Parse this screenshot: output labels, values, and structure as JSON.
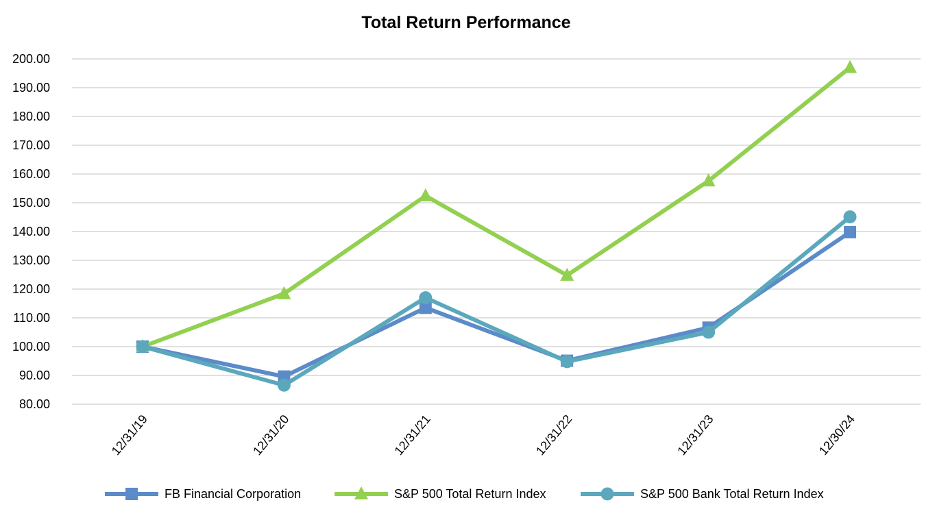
{
  "chart_data": {
    "type": "line",
    "title": "Total Return Performance",
    "xlabel": "",
    "ylabel": "",
    "categories": [
      "12/31/19",
      "12/31/20",
      "12/31/21",
      "12/31/22",
      "12/31/23",
      "12/30/24"
    ],
    "ylim": [
      80,
      200
    ],
    "yticks": [
      "80.00",
      "90.00",
      "100.00",
      "110.00",
      "120.00",
      "130.00",
      "140.00",
      "150.00",
      "160.00",
      "170.00",
      "180.00",
      "190.00",
      "200.00"
    ],
    "grid": true,
    "legend_position": "bottom",
    "series": [
      {
        "name": "FB Financial Corporation",
        "values": [
          100.0,
          89.6,
          113.5,
          95.1,
          106.6,
          139.8
        ],
        "color": "#5b8bc9",
        "marker": "square"
      },
      {
        "name": "S&P 500 Total Return Index",
        "values": [
          100.0,
          118.4,
          152.4,
          124.8,
          157.6,
          197.0
        ],
        "color": "#92d050",
        "marker": "triangle"
      },
      {
        "name": "S&P 500 Bank Total Return Index",
        "values": [
          100.0,
          86.6,
          117.0,
          94.8,
          105.0,
          145.1
        ],
        "color": "#5ba8bd",
        "marker": "circle"
      }
    ]
  }
}
